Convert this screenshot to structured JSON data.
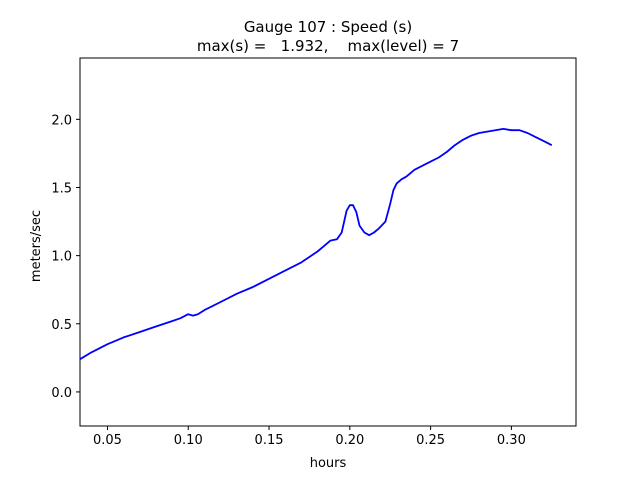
{
  "chart_data": {
    "type": "line",
    "title": "Gauge 107 : Speed (s)",
    "subtitle": "max(s) =   1.932,    max(level) = 7",
    "xlabel": "hours",
    "ylabel": "meters/sec",
    "xlim": [
      0.033,
      0.34
    ],
    "ylim": [
      -0.25,
      2.45
    ],
    "xticks": [
      {
        "value": 0.05,
        "label": "0.05"
      },
      {
        "value": 0.1,
        "label": "0.10"
      },
      {
        "value": 0.15,
        "label": "0.15"
      },
      {
        "value": 0.2,
        "label": "0.20"
      },
      {
        "value": 0.25,
        "label": "0.25"
      },
      {
        "value": 0.3,
        "label": "0.30"
      }
    ],
    "yticks": [
      {
        "value": 0.0,
        "label": "0.0"
      },
      {
        "value": 0.5,
        "label": "0.5"
      },
      {
        "value": 1.0,
        "label": "1.0"
      },
      {
        "value": 1.5,
        "label": "1.5"
      },
      {
        "value": 2.0,
        "label": "2.0"
      }
    ],
    "grid": false,
    "series": [
      {
        "color": "#0000ff",
        "x": [
          0.033,
          0.04,
          0.05,
          0.06,
          0.07,
          0.08,
          0.09,
          0.095,
          0.1,
          0.103,
          0.106,
          0.11,
          0.115,
          0.12,
          0.13,
          0.14,
          0.15,
          0.16,
          0.17,
          0.18,
          0.185,
          0.188,
          0.192,
          0.195,
          0.198,
          0.2,
          0.202,
          0.204,
          0.206,
          0.209,
          0.212,
          0.215,
          0.218,
          0.222,
          0.225,
          0.227,
          0.229,
          0.232,
          0.235,
          0.24,
          0.245,
          0.25,
          0.255,
          0.26,
          0.265,
          0.27,
          0.275,
          0.28,
          0.285,
          0.29,
          0.295,
          0.3,
          0.305,
          0.31,
          0.315,
          0.32,
          0.325
        ],
        "y": [
          0.24,
          0.29,
          0.35,
          0.4,
          0.44,
          0.48,
          0.52,
          0.54,
          0.57,
          0.56,
          0.57,
          0.6,
          0.63,
          0.66,
          0.72,
          0.77,
          0.83,
          0.89,
          0.95,
          1.03,
          1.08,
          1.11,
          1.12,
          1.17,
          1.33,
          1.37,
          1.37,
          1.32,
          1.22,
          1.17,
          1.15,
          1.17,
          1.2,
          1.25,
          1.38,
          1.48,
          1.53,
          1.56,
          1.58,
          1.63,
          1.66,
          1.69,
          1.72,
          1.76,
          1.81,
          1.85,
          1.88,
          1.9,
          1.91,
          1.92,
          1.93,
          1.92,
          1.92,
          1.9,
          1.87,
          1.84,
          1.81
        ]
      }
    ]
  }
}
